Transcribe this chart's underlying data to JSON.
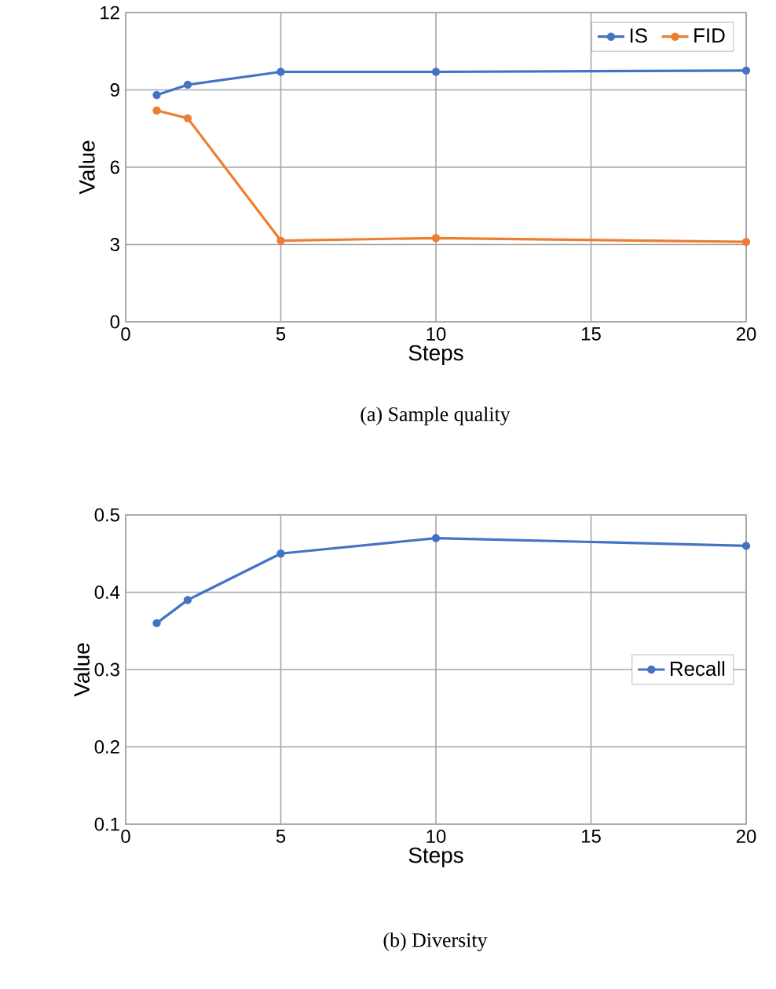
{
  "chart_data": [
    {
      "type": "line",
      "x": [
        1,
        2,
        5,
        10,
        20
      ],
      "xlabel": "Steps",
      "ylabel": "Value",
      "xlim": [
        0,
        20
      ],
      "xticks": [
        0,
        5,
        10,
        15,
        20
      ],
      "ylim": [
        0,
        12
      ],
      "yticks": [
        0,
        3,
        6,
        9,
        12
      ],
      "grid": true,
      "legend": "top right",
      "marker": "circle",
      "line_style": "solid",
      "annotations": [
        "(a)  Sample quality"
      ],
      "series": [
        {
          "name": "IS",
          "color": "#4472c4",
          "values": [
            8.8,
            9.2,
            9.7,
            9.7,
            9.75
          ]
        },
        {
          "name": "FID",
          "color": "#ed7d31",
          "values": [
            8.2,
            7.9,
            3.15,
            3.25,
            3.1
          ]
        }
      ]
    },
    {
      "type": "line",
      "x": [
        1,
        2,
        5,
        10,
        20
      ],
      "xlabel": "Steps",
      "ylabel": "Value",
      "xlim": [
        0,
        20
      ],
      "xticks": [
        0,
        5,
        10,
        15,
        20
      ],
      "ylim": [
        0.1,
        0.5
      ],
      "yticks": [
        0.1,
        0.2,
        0.3,
        0.4,
        0.5
      ],
      "grid": true,
      "legend": "right",
      "marker": "circle",
      "line_style": "solid",
      "annotations": [
        "(b)  Diversity"
      ],
      "series": [
        {
          "name": "Recall",
          "color": "#4472c4",
          "values": [
            0.36,
            0.39,
            0.45,
            0.47,
            0.46
          ]
        }
      ]
    }
  ]
}
